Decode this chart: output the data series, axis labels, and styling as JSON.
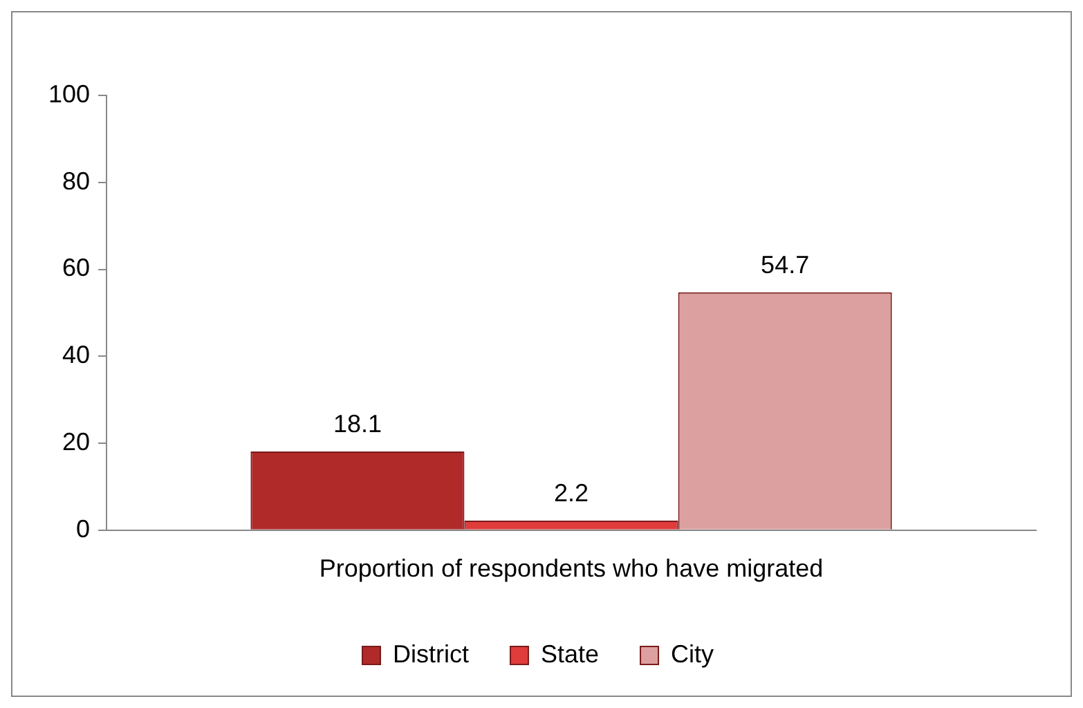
{
  "chart_data": {
    "type": "bar",
    "categories": [
      "Proportion of respondents who have migrated"
    ],
    "series": [
      {
        "name": "District",
        "color": "#b02a2a",
        "values": [
          18.1
        ]
      },
      {
        "name": "State",
        "color": "#e03c3c",
        "values": [
          2.2
        ]
      },
      {
        "name": "City",
        "color": "#dca0a0",
        "values": [
          54.7
        ]
      }
    ],
    "ylim": [
      0,
      100
    ],
    "yticks": [
      0,
      20,
      40,
      60,
      80,
      100
    ],
    "grid": false,
    "legend": "bottom",
    "data_labels": true
  }
}
